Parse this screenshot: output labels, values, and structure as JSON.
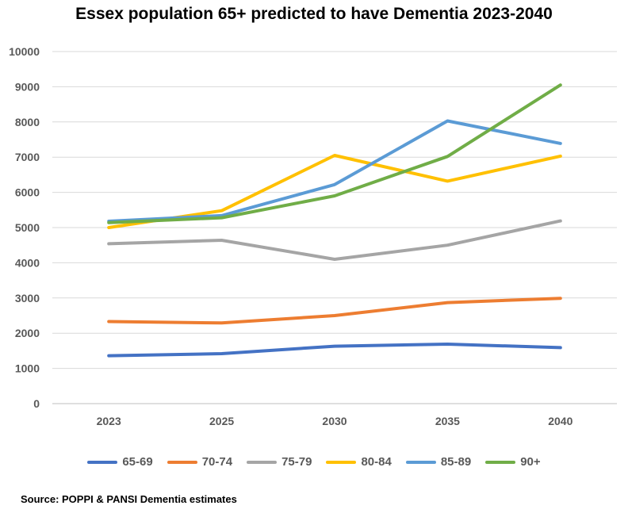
{
  "chart_data": {
    "type": "line",
    "title": "Essex population 65+ predicted to have Dementia 2023-2040",
    "categories": [
      "2023",
      "2025",
      "2030",
      "2035",
      "2040"
    ],
    "y_ticks": [
      "0",
      "1000",
      "2000",
      "3000",
      "4000",
      "5000",
      "6000",
      "7000",
      "8000",
      "9000",
      "10000"
    ],
    "ylim": [
      0,
      10000
    ],
    "grid": true,
    "legend_position": "bottom",
    "series": [
      {
        "name": "65-69",
        "color": "#4472C4",
        "values": [
          1360,
          1420,
          1630,
          1690,
          1590
        ]
      },
      {
        "name": "70-74",
        "color": "#ED7D31",
        "values": [
          2330,
          2290,
          2500,
          2870,
          2990
        ]
      },
      {
        "name": "75-79",
        "color": "#A5A5A5",
        "values": [
          4540,
          4640,
          4100,
          4500,
          5190
        ]
      },
      {
        "name": "80-84",
        "color": "#FFC000",
        "values": [
          5000,
          5480,
          7050,
          6320,
          7030
        ]
      },
      {
        "name": "85-89",
        "color": "#5B9BD5",
        "values": [
          5180,
          5340,
          6220,
          8030,
          7390
        ]
      },
      {
        "name": "90+",
        "color": "#70AD47",
        "values": [
          5140,
          5280,
          5900,
          7020,
          9050
        ]
      }
    ]
  },
  "footer": {
    "source": "Source: POPPI & PANSI Dementia estimates"
  }
}
